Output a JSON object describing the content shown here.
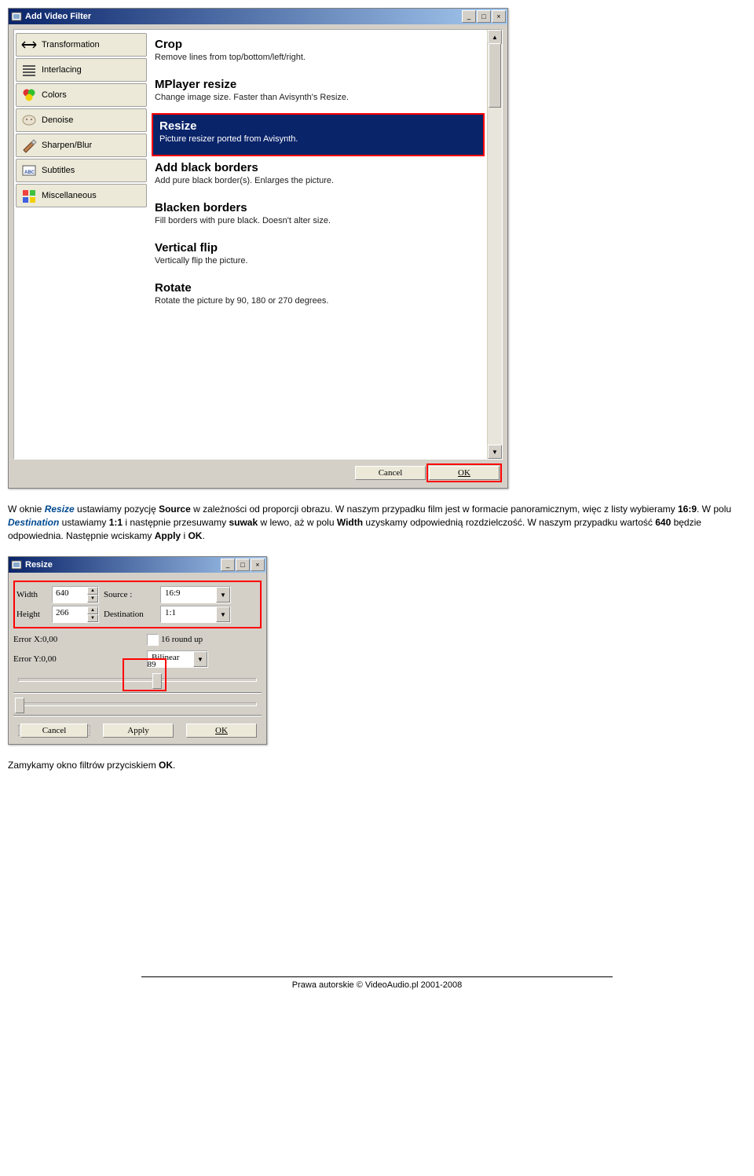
{
  "filterWindow": {
    "title": "Add Video Filter",
    "categories": [
      {
        "icon": "transformation",
        "label": "Transformation"
      },
      {
        "icon": "interlacing",
        "label": "Interlacing"
      },
      {
        "icon": "colors",
        "label": "Colors"
      },
      {
        "icon": "denoise",
        "label": "Denoise"
      },
      {
        "icon": "sharpen",
        "label": "Sharpen/Blur"
      },
      {
        "icon": "subtitles",
        "label": "Subtitles"
      },
      {
        "icon": "misc",
        "label": "Miscellaneous"
      }
    ],
    "items": [
      {
        "title": "Crop",
        "desc": "Remove lines from top/bottom/left/right.",
        "sel": false
      },
      {
        "title": "MPlayer resize",
        "desc": "Change image size. Faster than Avisynth's Resize.",
        "sel": false
      },
      {
        "title": "Resize",
        "desc": "Picture resizer ported from Avisynth.",
        "sel": true
      },
      {
        "title": "Add black borders",
        "desc": "Add pure black border(s). Enlarges the picture.",
        "sel": false
      },
      {
        "title": "Blacken borders",
        "desc": "Fill borders with pure black. Doesn't alter size.",
        "sel": false
      },
      {
        "title": "Vertical flip",
        "desc": "Vertically flip the picture.",
        "sel": false
      },
      {
        "title": "Rotate",
        "desc": "Rotate the picture by 90, 180 or 270 degrees.",
        "sel": false
      }
    ],
    "cancel": "Cancel",
    "ok": "OK"
  },
  "instr1": {
    "p1": "W oknie ",
    "resize": "Resize",
    "p2": " ustawiamy pozycję ",
    "source": "Source",
    "p3": " w zależności od proporcji obrazu. W naszym przypadku film jest w formacie panoramicznym, więc z listy wybieramy ",
    "r169": "16:9",
    "p4": ". W polu ",
    "dest": "Destination",
    "p5": " ustawiamy ",
    "r11": "1:1",
    "p6": " i następnie przesuwamy ",
    "suwak": "suwak",
    "p7": " w lewo, aż w polu ",
    "width": "Width",
    "p8": " uzyskamy odpowiednią rozdzielczość. W naszym przypadku wartość ",
    "v640": "640",
    "p9": " będzie odpowiednia. Następnie wciskamy ",
    "apply": "Apply",
    "and": " i ",
    "ok": "OK",
    "end": "."
  },
  "resizeWindow": {
    "title": "Resize",
    "widthLabel": "Width",
    "widthVal": "640",
    "sourceLabel": "Source :",
    "sourceVal": "16:9",
    "heightLabel": "Height",
    "heightVal": "266",
    "destLabel": "Destination",
    "destVal": "1:1",
    "errX": "Error X:0,00",
    "roundup": "16 round up",
    "errY": "Error Y:0,00",
    "method": "Bilinear",
    "sliderVal": "89",
    "cancel": "Cancel",
    "apply": "Apply",
    "ok": "OK"
  },
  "instr2": {
    "p1": "Zamykamy okno filtrów przyciskiem ",
    "ok": "OK",
    "end": "."
  },
  "footer": "Prawa autorskie © VideoAudio.pl 2001-2008"
}
